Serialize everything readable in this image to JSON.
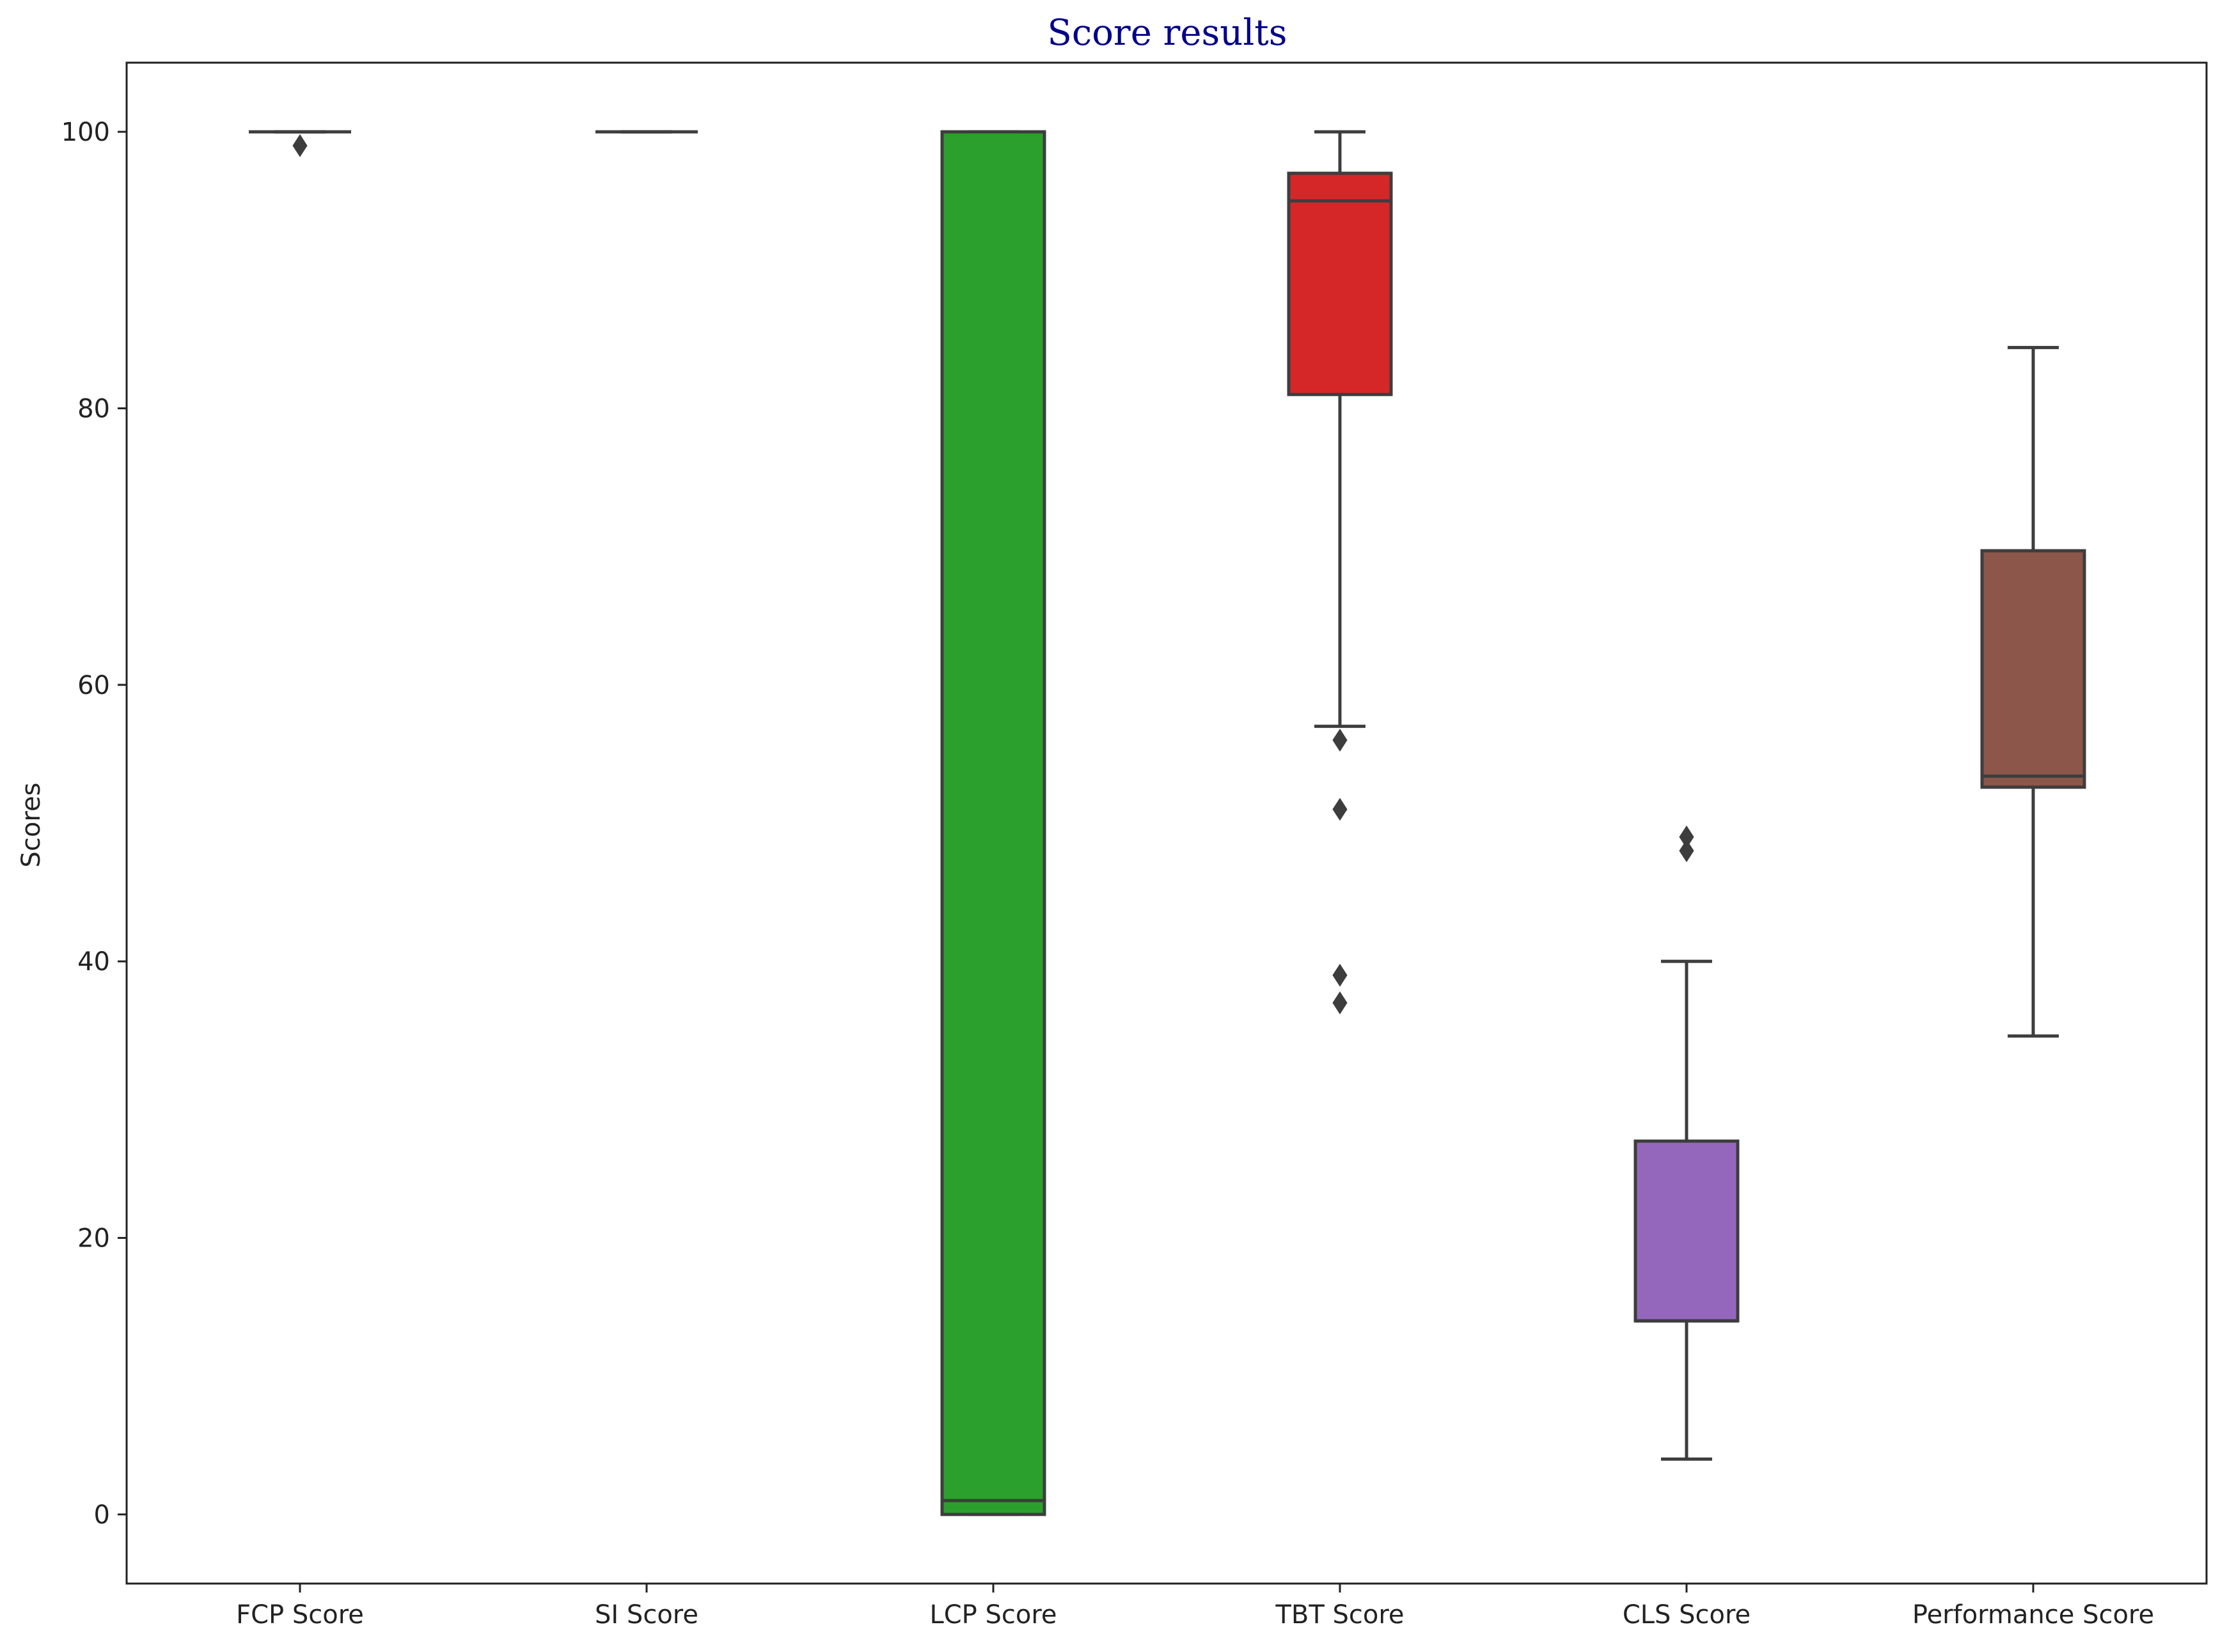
{
  "chart_data": {
    "type": "box",
    "title": "Score results",
    "xlabel": "",
    "ylabel": "Scores",
    "ylim": [
      -5,
      105
    ],
    "yticks": [
      0,
      20,
      40,
      60,
      80,
      100
    ],
    "grid": false,
    "legend": "none",
    "title_color": "#00008b",
    "categories": [
      "FCP Score",
      "SI Score",
      "LCP Score",
      "TBT Score",
      "CLS Score",
      "Performance Score"
    ],
    "boxes": [
      {
        "category": "FCP Score",
        "whisker_low": 100,
        "q1": 100,
        "median": 100,
        "q3": 100,
        "whisker_high": 100,
        "outliers": [
          99
        ],
        "color": "#1f77b4"
      },
      {
        "category": "SI Score",
        "whisker_low": 100,
        "q1": 100,
        "median": 100,
        "q3": 100,
        "whisker_high": 100,
        "outliers": [],
        "color": "#ff7f0e"
      },
      {
        "category": "LCP Score",
        "whisker_low": 0,
        "q1": 0,
        "median": 1,
        "q3": 100,
        "whisker_high": 100,
        "outliers": [],
        "color": "#2ca02c"
      },
      {
        "category": "TBT Score",
        "whisker_low": 57,
        "q1": 81,
        "median": 95,
        "q3": 97,
        "whisker_high": 100,
        "outliers": [
          56,
          51,
          39,
          37
        ],
        "color": "#d62728"
      },
      {
        "category": "CLS Score",
        "whisker_low": 4,
        "q1": 14,
        "median": 14,
        "q3": 27,
        "whisker_high": 40,
        "outliers": [
          49,
          48
        ],
        "color": "#9467bd"
      },
      {
        "category": "Performance Score",
        "whisker_low": 34.6,
        "q1": 52.6,
        "median": 53.4,
        "q3": 69.7,
        "whisker_high": 84.4,
        "outliers": [],
        "color": "#8c564b"
      }
    ]
  }
}
